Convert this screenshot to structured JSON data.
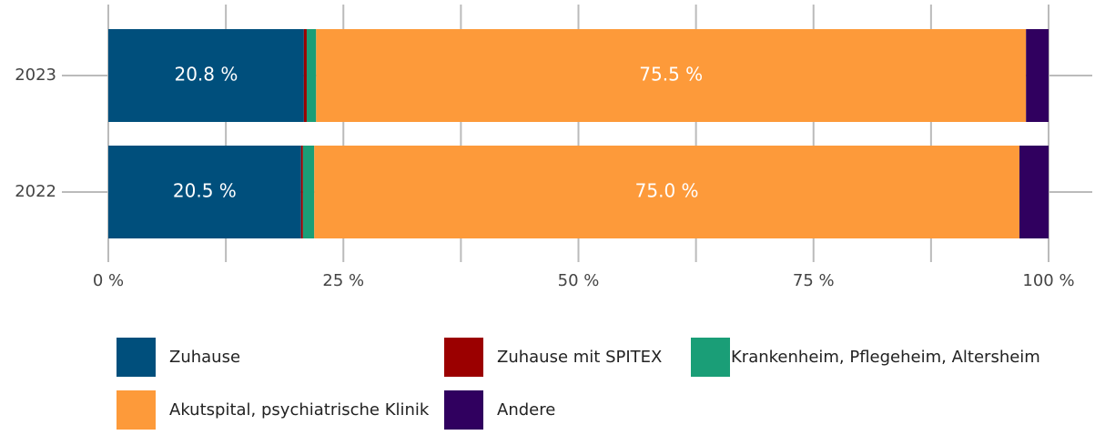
{
  "chart_data": {
    "type": "stacked_barh",
    "categories": [
      "2023",
      "2022"
    ],
    "series": [
      {
        "name": "Zuhause",
        "color": "#004f7c",
        "values": [
          20.8,
          20.5
        ],
        "value_labels": [
          "20.8 %",
          "20.5 %"
        ]
      },
      {
        "name": "Zuhause mit SPITEX",
        "color": "#9b0000",
        "values": [
          0.3,
          0.2
        ]
      },
      {
        "name": "Krankenheim, Pflegeheim, Altersheim",
        "color": "#1a9e77",
        "values": [
          1.0,
          1.2
        ]
      },
      {
        "name": "Akutspital, psychiatrische Klinik",
        "color": "#fd9a3a",
        "values": [
          75.5,
          75.0
        ],
        "value_labels": [
          "75.5 %",
          "75.0 %"
        ]
      },
      {
        "name": "Andere",
        "color": "#30005f",
        "values": [
          2.4,
          3.1
        ]
      }
    ],
    "xlim": [
      0,
      100
    ],
    "xticks": [
      {
        "value": 0,
        "label": "0 %"
      },
      {
        "value": 25,
        "label": "25 %"
      },
      {
        "value": 50,
        "label": "50 %"
      },
      {
        "value": 75,
        "label": "75 %"
      },
      {
        "value": 100,
        "label": "100 %"
      }
    ],
    "xminor": [
      12.5,
      37.5,
      62.5,
      87.5
    ],
    "grid": true
  }
}
